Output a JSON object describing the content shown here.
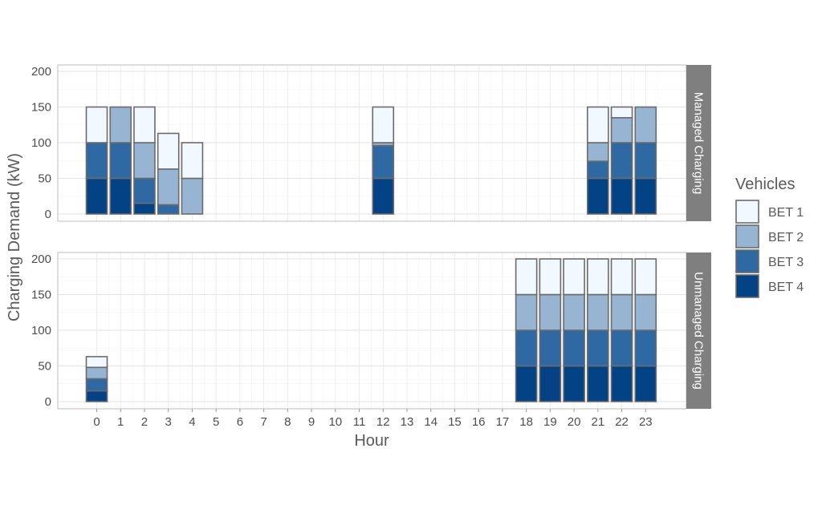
{
  "chart_data": {
    "type": "bar",
    "stacked": true,
    "xlabel": "Hour",
    "ylabel": "Charging Demand (kW)",
    "x_categories": [
      "0",
      "1",
      "2",
      "3",
      "4",
      "5",
      "6",
      "7",
      "8",
      "9",
      "10",
      "11",
      "12",
      "13",
      "14",
      "15",
      "16",
      "17",
      "18",
      "19",
      "20",
      "21",
      "22",
      "23"
    ],
    "ylim": [
      0,
      200
    ],
    "y_ticks": [
      0,
      50,
      100,
      150,
      200
    ],
    "grid": true,
    "legend": {
      "title": "Vehicles",
      "position": "right",
      "entries": [
        {
          "name": "BET 1",
          "color": "#f2f8ff"
        },
        {
          "name": "BET 2",
          "color": "#97b4d2"
        },
        {
          "name": "BET 3",
          "color": "#2e69a3"
        },
        {
          "name": "BET 4",
          "color": "#034285"
        }
      ]
    },
    "bar_outline_color": "#6b6b6b",
    "strip_color": "#7f7f7f",
    "panels": [
      {
        "label": "Managed Charging",
        "series": [
          {
            "name": "BET 4",
            "values": [
              50,
              50,
              15,
              0,
              0,
              0,
              0,
              0,
              0,
              0,
              0,
              0,
              50,
              0,
              0,
              0,
              0,
              0,
              0,
              0,
              0,
              50,
              50,
              50
            ]
          },
          {
            "name": "BET 3",
            "values": [
              50,
              50,
              35,
              13,
              0,
              0,
              0,
              0,
              0,
              0,
              0,
              0,
              46,
              0,
              0,
              0,
              0,
              0,
              0,
              0,
              0,
              24,
              50,
              50
            ]
          },
          {
            "name": "BET 2",
            "values": [
              0,
              50,
              50,
              50,
              50,
              0,
              0,
              0,
              0,
              0,
              0,
              0,
              4,
              0,
              0,
              0,
              0,
              0,
              0,
              0,
              0,
              26,
              35,
              50
            ]
          },
          {
            "name": "BET 1",
            "values": [
              50,
              0,
              50,
              50,
              50,
              0,
              0,
              0,
              0,
              0,
              0,
              0,
              50,
              0,
              0,
              0,
              0,
              0,
              0,
              0,
              0,
              50,
              15,
              0
            ]
          }
        ]
      },
      {
        "label": "Unmanaged Charging",
        "series": [
          {
            "name": "BET 4",
            "values": [
              15,
              0,
              0,
              0,
              0,
              0,
              0,
              0,
              0,
              0,
              0,
              0,
              0,
              0,
              0,
              0,
              0,
              0,
              50,
              50,
              50,
              50,
              50,
              50
            ]
          },
          {
            "name": "BET 3",
            "values": [
              17,
              0,
              0,
              0,
              0,
              0,
              0,
              0,
              0,
              0,
              0,
              0,
              0,
              0,
              0,
              0,
              0,
              0,
              50,
              50,
              50,
              50,
              50,
              50
            ]
          },
          {
            "name": "BET 2",
            "values": [
              16,
              0,
              0,
              0,
              0,
              0,
              0,
              0,
              0,
              0,
              0,
              0,
              0,
              0,
              0,
              0,
              0,
              0,
              50,
              50,
              50,
              50,
              50,
              50
            ]
          },
          {
            "name": "BET 1",
            "values": [
              15,
              0,
              0,
              0,
              0,
              0,
              0,
              0,
              0,
              0,
              0,
              0,
              0,
              0,
              0,
              0,
              0,
              0,
              50,
              50,
              50,
              50,
              50,
              50
            ]
          }
        ]
      }
    ]
  }
}
